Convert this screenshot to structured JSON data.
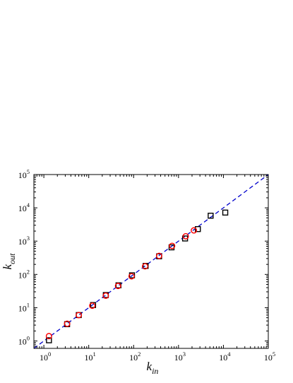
{
  "chart_data": {
    "type": "scatter",
    "title": "",
    "x_scale": "log",
    "y_scale": "log",
    "xlim": [
      0.6,
      100000
    ],
    "ylim": [
      0.6,
      100000
    ],
    "grid": false,
    "xlabel": {
      "base": "k",
      "subscript": "in"
    },
    "ylabel": {
      "base": "k",
      "subscript": "out"
    },
    "x_ticks": [
      {
        "value": 1,
        "base": "10",
        "exp": "0"
      },
      {
        "value": 10,
        "base": "10",
        "exp": "1"
      },
      {
        "value": 100,
        "base": "10",
        "exp": "2"
      },
      {
        "value": 1000,
        "base": "10",
        "exp": "3"
      },
      {
        "value": 10000,
        "base": "10",
        "exp": "4"
      },
      {
        "value": 100000,
        "base": "10",
        "exp": "5"
      }
    ],
    "y_ticks": [
      {
        "value": 1,
        "base": "10",
        "exp": "0"
      },
      {
        "value": 10,
        "base": "10",
        "exp": "1"
      },
      {
        "value": 100,
        "base": "10",
        "exp": "2"
      },
      {
        "value": 1000,
        "base": "10",
        "exp": "3"
      },
      {
        "value": 10000,
        "base": "10",
        "exp": "4"
      },
      {
        "value": 100000,
        "base": "10",
        "exp": "5"
      }
    ],
    "series": [
      {
        "marker": "square",
        "color": "#000000",
        "points": [
          {
            "x": 1.3,
            "y": 1.05
          },
          {
            "x": 3.3,
            "y": 3.2
          },
          {
            "x": 6.0,
            "y": 6.0
          },
          {
            "x": 12.5,
            "y": 12.0
          },
          {
            "x": 24,
            "y": 24
          },
          {
            "x": 46,
            "y": 47
          },
          {
            "x": 92,
            "y": 94
          },
          {
            "x": 185,
            "y": 180
          },
          {
            "x": 370,
            "y": 350
          },
          {
            "x": 700,
            "y": 650
          },
          {
            "x": 1400,
            "y": 1200
          },
          {
            "x": 2700,
            "y": 2300
          },
          {
            "x": 5200,
            "y": 5800
          },
          {
            "x": 11000,
            "y": 7200
          }
        ]
      },
      {
        "marker": "circle",
        "color": "#ff0000",
        "points": [
          {
            "x": 1.3,
            "y": 1.4
          },
          {
            "x": 3.3,
            "y": 3.3
          },
          {
            "x": 6.0,
            "y": 6.0
          },
          {
            "x": 12.0,
            "y": 11.5
          },
          {
            "x": 24,
            "y": 23
          },
          {
            "x": 45,
            "y": 45
          },
          {
            "x": 90,
            "y": 88
          },
          {
            "x": 180,
            "y": 175
          },
          {
            "x": 370,
            "y": 360
          },
          {
            "x": 720,
            "y": 720
          },
          {
            "x": 1450,
            "y": 1400
          },
          {
            "x": 2200,
            "y": 2100
          }
        ]
      }
    ],
    "reference_line": {
      "type": "y=x",
      "style": "dashed",
      "color": "#0000cc"
    }
  }
}
